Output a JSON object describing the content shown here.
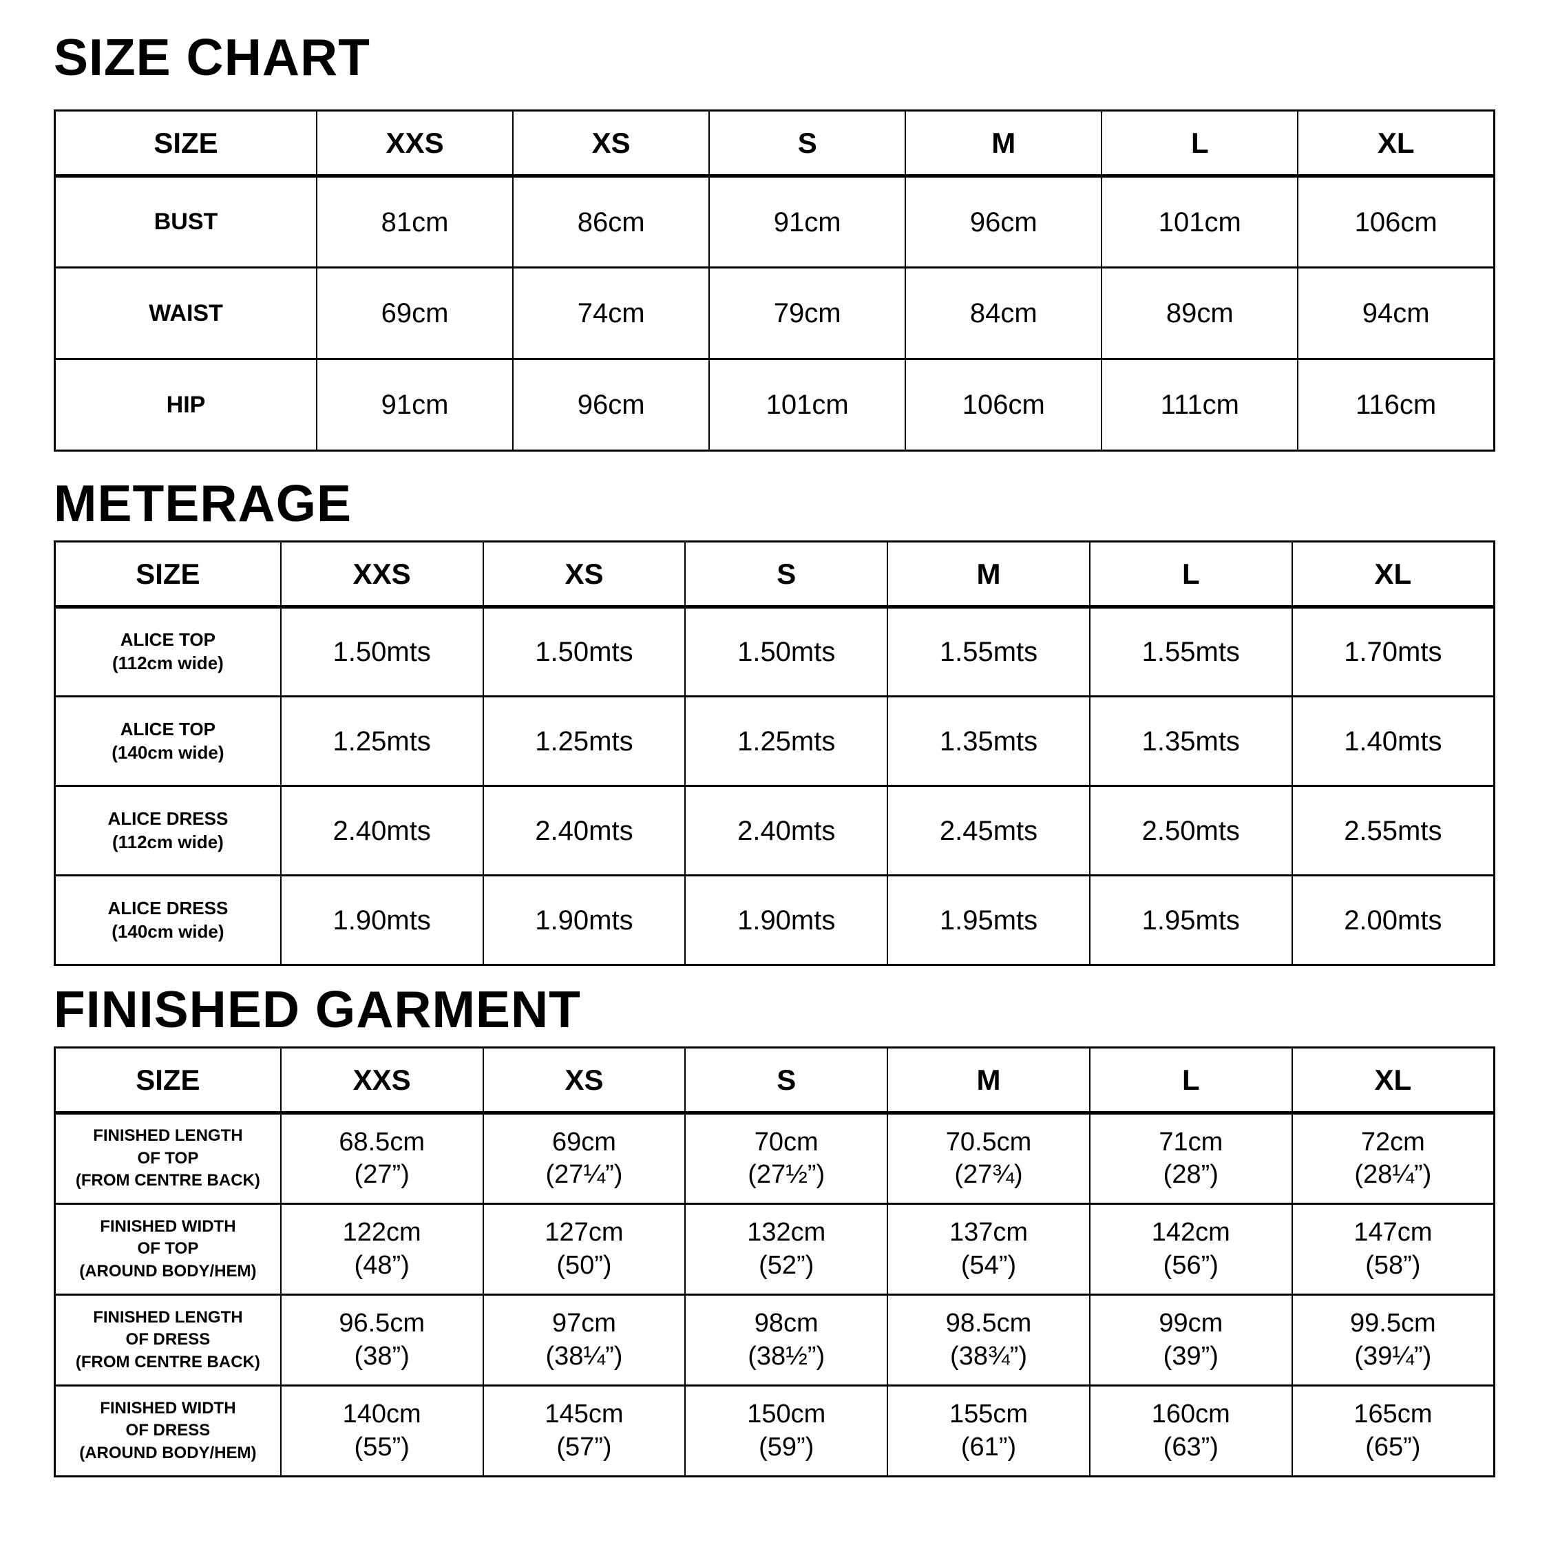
{
  "sections": [
    {
      "id": "size-chart",
      "title": "SIZE CHART",
      "columns": [
        "SIZE",
        "XXS",
        "XS",
        "S",
        "M",
        "L",
        "XL"
      ],
      "rows": [
        {
          "label": [
            "BUST"
          ],
          "cells": [
            [
              "81cm"
            ],
            [
              "86cm"
            ],
            [
              "91cm"
            ],
            [
              "96cm"
            ],
            [
              "101cm"
            ],
            [
              "106cm"
            ]
          ]
        },
        {
          "label": [
            "WAIST"
          ],
          "cells": [
            [
              "69cm"
            ],
            [
              "74cm"
            ],
            [
              "79cm"
            ],
            [
              "84cm"
            ],
            [
              "89cm"
            ],
            [
              "94cm"
            ]
          ]
        },
        {
          "label": [
            "HIP"
          ],
          "cells": [
            [
              "91cm"
            ],
            [
              "96cm"
            ],
            [
              "101cm"
            ],
            [
              "106cm"
            ],
            [
              "111cm"
            ],
            [
              "116cm"
            ]
          ]
        }
      ]
    },
    {
      "id": "meterage",
      "title": "METERAGE",
      "columns": [
        "SIZE",
        "XXS",
        "XS",
        "S",
        "M",
        "L",
        "XL"
      ],
      "rows": [
        {
          "label": [
            "ALICE TOP",
            "(112cm wide)"
          ],
          "cells": [
            [
              "1.50mts"
            ],
            [
              "1.50mts"
            ],
            [
              "1.50mts"
            ],
            [
              "1.55mts"
            ],
            [
              "1.55mts"
            ],
            [
              "1.70mts"
            ]
          ]
        },
        {
          "label": [
            "ALICE TOP",
            "(140cm wide)"
          ],
          "cells": [
            [
              "1.25mts"
            ],
            [
              "1.25mts"
            ],
            [
              "1.25mts"
            ],
            [
              "1.35mts"
            ],
            [
              "1.35mts"
            ],
            [
              "1.40mts"
            ]
          ]
        },
        {
          "label": [
            "ALICE DRESS",
            "(112cm wide)"
          ],
          "cells": [
            [
              "2.40mts"
            ],
            [
              "2.40mts"
            ],
            [
              "2.40mts"
            ],
            [
              "2.45mts"
            ],
            [
              "2.50mts"
            ],
            [
              "2.55mts"
            ]
          ]
        },
        {
          "label": [
            "ALICE DRESS",
            "(140cm wide)"
          ],
          "cells": [
            [
              "1.90mts"
            ],
            [
              "1.90mts"
            ],
            [
              "1.90mts"
            ],
            [
              "1.95mts"
            ],
            [
              "1.95mts"
            ],
            [
              "2.00mts"
            ]
          ]
        }
      ]
    },
    {
      "id": "finished-garment",
      "title": "FINISHED GARMENT",
      "columns": [
        "SIZE",
        "XXS",
        "XS",
        "S",
        "M",
        "L",
        "XL"
      ],
      "rows": [
        {
          "label": [
            "FINISHED LENGTH",
            "OF TOP",
            "(FROM CENTRE BACK)"
          ],
          "cells": [
            [
              "68.5cm",
              "(27”)"
            ],
            [
              "69cm",
              "(27¼”)"
            ],
            [
              "70cm",
              "(27½”)"
            ],
            [
              "70.5cm",
              "(27¾)"
            ],
            [
              "71cm",
              "(28”)"
            ],
            [
              "72cm",
              "(28¼”)"
            ]
          ]
        },
        {
          "label": [
            "FINISHED WIDTH",
            "OF TOP",
            "(AROUND BODY/HEM)"
          ],
          "cells": [
            [
              "122cm",
              "(48”)"
            ],
            [
              "127cm",
              "(50”)"
            ],
            [
              "132cm",
              "(52”)"
            ],
            [
              "137cm",
              "(54”)"
            ],
            [
              "142cm",
              "(56”)"
            ],
            [
              "147cm",
              "(58”)"
            ]
          ]
        },
        {
          "label": [
            "FINISHED LENGTH",
            "OF DRESS",
            "(FROM CENTRE BACK)"
          ],
          "cells": [
            [
              "96.5cm",
              "(38”)"
            ],
            [
              "97cm",
              "(38¼”)"
            ],
            [
              "98cm",
              "(38½”)"
            ],
            [
              "98.5cm",
              "(38¾”)"
            ],
            [
              "99cm",
              "(39”)"
            ],
            [
              "99.5cm",
              "(39¼”)"
            ]
          ]
        },
        {
          "label": [
            "FINISHED WIDTH",
            "OF DRESS",
            "(AROUND BODY/HEM)"
          ],
          "cells": [
            [
              "140cm",
              "(55”)"
            ],
            [
              "145cm",
              "(57”)"
            ],
            [
              "150cm",
              "(59”)"
            ],
            [
              "155cm",
              "(61”)"
            ],
            [
              "160cm",
              "(63”)"
            ],
            [
              "165cm",
              "(65”)"
            ]
          ]
        }
      ]
    }
  ],
  "colors": {
    "text": "#000000",
    "background": "#ffffff",
    "border": "#000000"
  }
}
